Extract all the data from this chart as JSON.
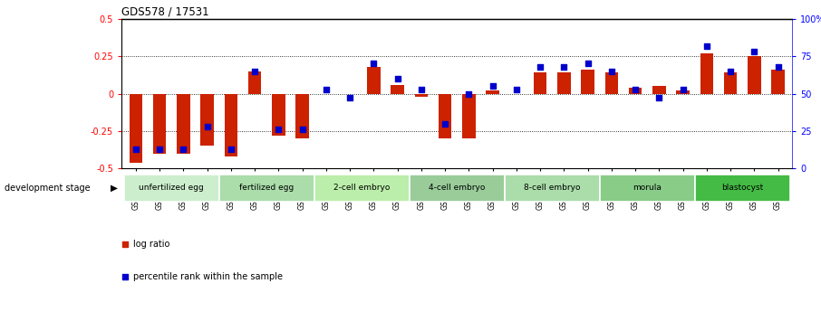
{
  "title": "GDS578 / 17531",
  "samples": [
    "GSM14658",
    "GSM14660",
    "GSM14661",
    "GSM14662",
    "GSM14663",
    "GSM14664",
    "GSM14665",
    "GSM14666",
    "GSM14667",
    "GSM14668",
    "GSM14677",
    "GSM14678",
    "GSM14679",
    "GSM14680",
    "GSM14681",
    "GSM14682",
    "GSM14683",
    "GSM14684",
    "GSM14685",
    "GSM14686",
    "GSM14687",
    "GSM14688",
    "GSM14689",
    "GSM14690",
    "GSM14691",
    "GSM14692",
    "GSM14693",
    "GSM14694"
  ],
  "log_ratio": [
    -0.46,
    -0.4,
    -0.4,
    -0.35,
    -0.42,
    0.15,
    -0.28,
    -0.3,
    0.0,
    0.0,
    0.18,
    0.06,
    -0.02,
    -0.3,
    -0.3,
    0.02,
    0.0,
    0.14,
    0.14,
    0.16,
    0.14,
    0.04,
    0.05,
    0.02,
    0.27,
    0.14,
    0.25,
    0.16
  ],
  "percentile_rank": [
    13,
    13,
    13,
    28,
    13,
    65,
    26,
    26,
    53,
    47,
    70,
    60,
    53,
    30,
    50,
    55,
    53,
    68,
    68,
    70,
    65,
    53,
    47,
    53,
    82,
    65,
    78,
    68
  ],
  "stages": [
    {
      "label": "unfertilized egg",
      "start": 0,
      "end": 4,
      "color": "#cceecc"
    },
    {
      "label": "fertilized egg",
      "start": 4,
      "end": 8,
      "color": "#aaddaa"
    },
    {
      "label": "2-cell embryo",
      "start": 8,
      "end": 12,
      "color": "#bbeeaa"
    },
    {
      "label": "4-cell embryo",
      "start": 12,
      "end": 16,
      "color": "#99cc99"
    },
    {
      "label": "8-cell embryo",
      "start": 16,
      "end": 20,
      "color": "#aaddaa"
    },
    {
      "label": "morula",
      "start": 20,
      "end": 24,
      "color": "#88cc88"
    },
    {
      "label": "blastocyst",
      "start": 24,
      "end": 28,
      "color": "#44bb44"
    }
  ],
  "ylim": [
    -0.5,
    0.5
  ],
  "y2lim": [
    0,
    100
  ],
  "bar_color": "#cc2200",
  "dot_color": "#0000cc",
  "background_color": "#ffffff",
  "stage_label_prefix": "development stage",
  "legend_log_ratio": "log ratio",
  "legend_pct": "percentile rank within the sample"
}
